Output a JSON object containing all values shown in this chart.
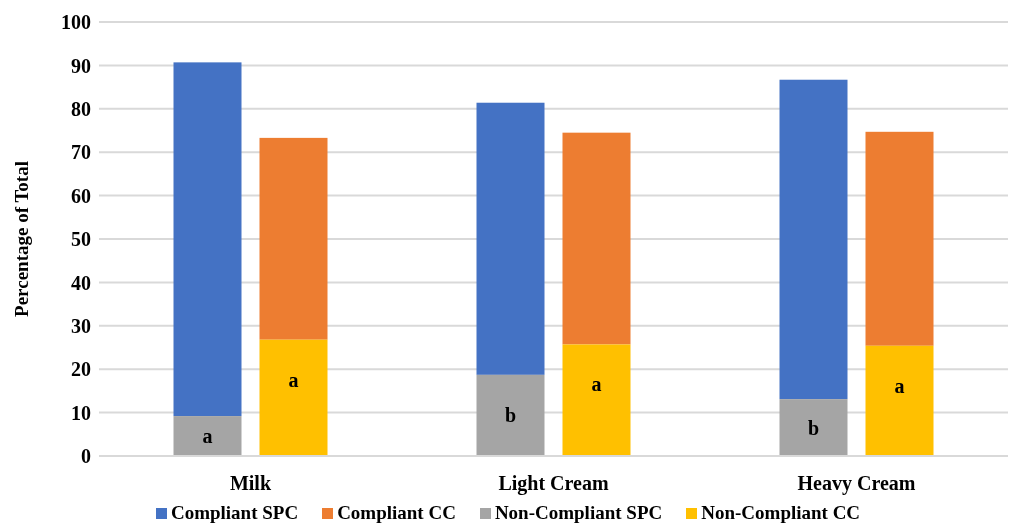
{
  "chart_data": {
    "type": "bar",
    "ylabel": "Percentage of Total",
    "categories": [
      "Milk",
      "Light Cream",
      "Heavy Cream"
    ],
    "series": [
      {
        "name": "Compliant SPC",
        "color": "#4472c4",
        "base": [
          9.2,
          18.7,
          13.1
        ],
        "values": [
          81.5,
          62.7,
          73.6
        ]
      },
      {
        "name": "Compliant CC",
        "color": "#ed7d31",
        "base": [
          26.8,
          25.7,
          25.4
        ],
        "values": [
          46.5,
          48.8,
          49.3
        ]
      },
      {
        "name": "Non-Compliant SPC",
        "color": "#a5a5a5",
        "values": [
          9.2,
          18.7,
          13.1
        ],
        "value_labels": [
          "a",
          "b",
          "b"
        ]
      },
      {
        "name": "Non-Compliant CC",
        "color": "#ffc000",
        "values": [
          26.8,
          25.7,
          25.4
        ],
        "value_labels": [
          "a",
          "a",
          "a"
        ]
      }
    ],
    "ylim": [
      0,
      100
    ],
    "yticks": [
      0,
      10,
      20,
      30,
      40,
      50,
      60,
      70,
      80,
      90,
      100
    ],
    "grid": "y",
    "legend": "bottom"
  }
}
